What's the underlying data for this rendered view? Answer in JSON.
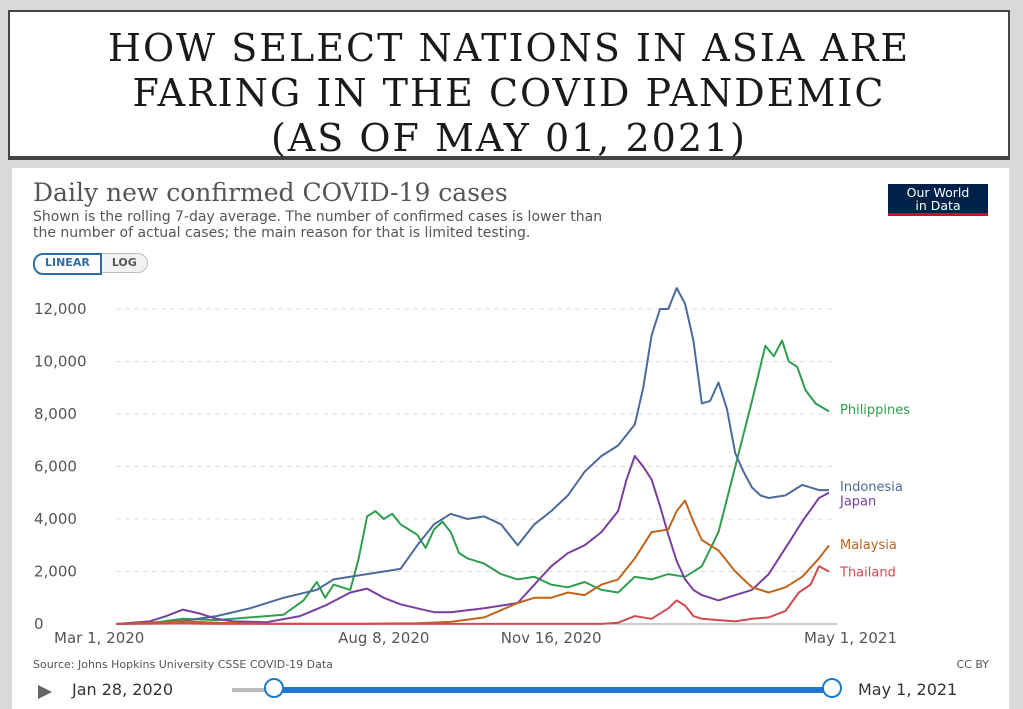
{
  "banner": {
    "line1": "HOW SELECT NATIONS IN ASIA ARE",
    "line2": "FARING IN THE COVID PANDEMIC",
    "line3": "(AS OF MAY 01, 2021)"
  },
  "logo": {
    "line1": "Our World",
    "line2": "in Data"
  },
  "toggle": {
    "linear": "LINEAR",
    "log": "LOG"
  },
  "footer": {
    "source": "Source: Johns Hopkins University CSSE COVID-19 Data",
    "license": "CC BY"
  },
  "timeline": {
    "start_label": "Jan 28, 2020",
    "end_label": "May 1, 2021"
  },
  "chart_data": {
    "type": "line",
    "title": "Daily new confirmed COVID-19 cases",
    "subtitle1": "Shown is the rolling 7-day average. The number of confirmed cases is lower than",
    "subtitle2": "the number of actual cases; the main reason for that is limited testing.",
    "xlabel": "",
    "ylabel": "",
    "ylim": [
      0,
      12800
    ],
    "yticks": [
      0,
      2000,
      4000,
      6000,
      8000,
      10000,
      12000
    ],
    "ytick_labels": [
      "0",
      "2,000",
      "4,000",
      "6,000",
      "8,000",
      "10,000",
      "12,000"
    ],
    "x_unit": "days since Mar 1, 2020",
    "xlim": [
      0,
      426
    ],
    "xticks": [
      0,
      160,
      260,
      426
    ],
    "xtick_labels": [
      "Mar 1, 2020",
      "Aug 8, 2020",
      "Nov 16, 2020",
      "May 1, 2021"
    ],
    "grid": "horizontal dashed",
    "legend": "inline-right",
    "series": [
      {
        "name": "Philippines",
        "color": "#2e9e4f",
        "points": [
          [
            0,
            0
          ],
          [
            20,
            30
          ],
          [
            40,
            200
          ],
          [
            60,
            150
          ],
          [
            80,
            250
          ],
          [
            100,
            350
          ],
          [
            112,
            900
          ],
          [
            120,
            1600
          ],
          [
            125,
            1000
          ],
          [
            130,
            1500
          ],
          [
            140,
            1300
          ],
          [
            145,
            2500
          ],
          [
            150,
            4100
          ],
          [
            155,
            4300
          ],
          [
            160,
            4000
          ],
          [
            165,
            4200
          ],
          [
            170,
            3800
          ],
          [
            175,
            3600
          ],
          [
            180,
            3400
          ],
          [
            185,
            2900
          ],
          [
            190,
            3600
          ],
          [
            195,
            3900
          ],
          [
            200,
            3500
          ],
          [
            205,
            2700
          ],
          [
            210,
            2500
          ],
          [
            220,
            2300
          ],
          [
            230,
            1900
          ],
          [
            240,
            1700
          ],
          [
            250,
            1800
          ],
          [
            260,
            1500
          ],
          [
            270,
            1400
          ],
          [
            280,
            1600
          ],
          [
            290,
            1300
          ],
          [
            300,
            1200
          ],
          [
            310,
            1800
          ],
          [
            320,
            1700
          ],
          [
            330,
            1900
          ],
          [
            340,
            1800
          ],
          [
            350,
            2200
          ],
          [
            360,
            3500
          ],
          [
            370,
            6000
          ],
          [
            380,
            8500
          ],
          [
            388,
            10600
          ],
          [
            393,
            10200
          ],
          [
            398,
            10800
          ],
          [
            402,
            10000
          ],
          [
            407,
            9800
          ],
          [
            412,
            8900
          ],
          [
            418,
            8400
          ],
          [
            426,
            8100
          ]
        ]
      },
      {
        "name": "Indonesia",
        "color": "#4c6a9c",
        "points": [
          [
            0,
            0
          ],
          [
            20,
            50
          ],
          [
            40,
            120
          ],
          [
            60,
            300
          ],
          [
            80,
            600
          ],
          [
            100,
            1000
          ],
          [
            120,
            1300
          ],
          [
            130,
            1700
          ],
          [
            140,
            1800
          ],
          [
            150,
            1900
          ],
          [
            160,
            2000
          ],
          [
            170,
            2100
          ],
          [
            180,
            3000
          ],
          [
            190,
            3800
          ],
          [
            200,
            4200
          ],
          [
            210,
            4000
          ],
          [
            220,
            4100
          ],
          [
            230,
            3800
          ],
          [
            240,
            3000
          ],
          [
            250,
            3800
          ],
          [
            260,
            4300
          ],
          [
            270,
            4900
          ],
          [
            280,
            5800
          ],
          [
            290,
            6400
          ],
          [
            300,
            6800
          ],
          [
            310,
            7600
          ],
          [
            315,
            9000
          ],
          [
            320,
            11000
          ],
          [
            325,
            12000
          ],
          [
            330,
            12000
          ],
          [
            335,
            12800
          ],
          [
            340,
            12200
          ],
          [
            345,
            10800
          ],
          [
            350,
            8400
          ],
          [
            355,
            8500
          ],
          [
            360,
            9200
          ],
          [
            365,
            8200
          ],
          [
            370,
            6500
          ],
          [
            375,
            5800
          ],
          [
            380,
            5200
          ],
          [
            385,
            4900
          ],
          [
            390,
            4800
          ],
          [
            400,
            4900
          ],
          [
            410,
            5300
          ],
          [
            420,
            5100
          ],
          [
            426,
            5100
          ]
        ]
      },
      {
        "name": "Japan",
        "color": "#7a3f9d",
        "points": [
          [
            0,
            0
          ],
          [
            20,
            100
          ],
          [
            30,
            300
          ],
          [
            40,
            550
          ],
          [
            50,
            400
          ],
          [
            60,
            200
          ],
          [
            70,
            100
          ],
          [
            90,
            70
          ],
          [
            110,
            300
          ],
          [
            125,
            700
          ],
          [
            140,
            1200
          ],
          [
            150,
            1350
          ],
          [
            160,
            1000
          ],
          [
            170,
            750
          ],
          [
            180,
            600
          ],
          [
            190,
            450
          ],
          [
            200,
            450
          ],
          [
            220,
            600
          ],
          [
            240,
            800
          ],
          [
            250,
            1500
          ],
          [
            260,
            2200
          ],
          [
            270,
            2700
          ],
          [
            280,
            3000
          ],
          [
            290,
            3500
          ],
          [
            300,
            4300
          ],
          [
            305,
            5500
          ],
          [
            310,
            6400
          ],
          [
            315,
            6000
          ],
          [
            320,
            5500
          ],
          [
            325,
            4500
          ],
          [
            330,
            3400
          ],
          [
            335,
            2400
          ],
          [
            340,
            1700
          ],
          [
            345,
            1300
          ],
          [
            350,
            1100
          ],
          [
            360,
            900
          ],
          [
            370,
            1100
          ],
          [
            380,
            1300
          ],
          [
            390,
            1900
          ],
          [
            400,
            2900
          ],
          [
            410,
            3900
          ],
          [
            420,
            4800
          ],
          [
            426,
            5000
          ]
        ]
      },
      {
        "name": "Malaysia",
        "color": "#c0641e",
        "points": [
          [
            0,
            0
          ],
          [
            40,
            100
          ],
          [
            60,
            50
          ],
          [
            90,
            10
          ],
          [
            120,
            10
          ],
          [
            150,
            10
          ],
          [
            180,
            30
          ],
          [
            200,
            80
          ],
          [
            220,
            250
          ],
          [
            240,
            800
          ],
          [
            250,
            1000
          ],
          [
            260,
            1000
          ],
          [
            270,
            1200
          ],
          [
            280,
            1100
          ],
          [
            290,
            1500
          ],
          [
            300,
            1700
          ],
          [
            310,
            2500
          ],
          [
            320,
            3500
          ],
          [
            330,
            3600
          ],
          [
            335,
            4300
          ],
          [
            340,
            4700
          ],
          [
            345,
            3900
          ],
          [
            350,
            3200
          ],
          [
            360,
            2800
          ],
          [
            370,
            2000
          ],
          [
            380,
            1400
          ],
          [
            390,
            1200
          ],
          [
            400,
            1400
          ],
          [
            410,
            1800
          ],
          [
            420,
            2500
          ],
          [
            426,
            3000
          ]
        ]
      },
      {
        "name": "Thailand",
        "color": "#d14a52",
        "points": [
          [
            0,
            0
          ],
          [
            40,
            20
          ],
          [
            60,
            5
          ],
          [
            200,
            5
          ],
          [
            290,
            5
          ],
          [
            300,
            50
          ],
          [
            310,
            300
          ],
          [
            320,
            200
          ],
          [
            330,
            600
          ],
          [
            335,
            900
          ],
          [
            340,
            700
          ],
          [
            345,
            300
          ],
          [
            350,
            200
          ],
          [
            360,
            150
          ],
          [
            370,
            100
          ],
          [
            380,
            200
          ],
          [
            390,
            250
          ],
          [
            400,
            500
          ],
          [
            408,
            1200
          ],
          [
            415,
            1500
          ],
          [
            420,
            2200
          ],
          [
            426,
            2000
          ]
        ]
      }
    ]
  }
}
